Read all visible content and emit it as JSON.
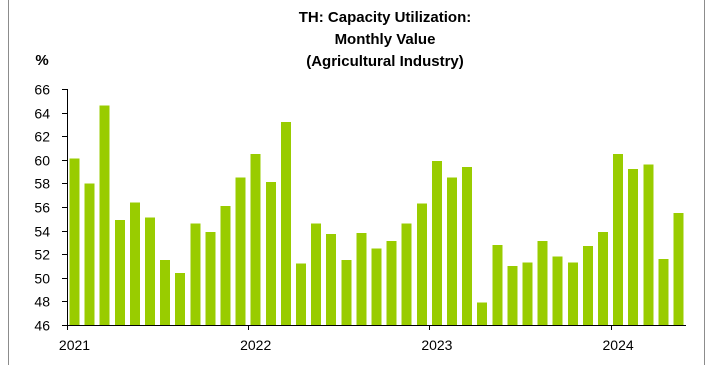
{
  "colors": {
    "bar": "#99cc00",
    "axis": "#000000"
  },
  "chart_data": {
    "type": "bar",
    "title": [
      "TH: Capacity Utilization:",
      "Monthly Value",
      "(Agricultural Industry)"
    ],
    "ylabel": "%",
    "ylim": [
      46,
      66
    ],
    "yticks": [
      46,
      48,
      50,
      52,
      54,
      56,
      58,
      60,
      62,
      64,
      66
    ],
    "xtick_labels": [
      "2021",
      "2022",
      "2023",
      "2024"
    ],
    "grid": false,
    "legend": false,
    "x": [
      "2021-01",
      "2021-02",
      "2021-03",
      "2021-04",
      "2021-05",
      "2021-06",
      "2021-07",
      "2021-08",
      "2021-09",
      "2021-10",
      "2021-11",
      "2021-12",
      "2022-01",
      "2022-02",
      "2022-03",
      "2022-04",
      "2022-05",
      "2022-06",
      "2022-07",
      "2022-08",
      "2022-09",
      "2022-10",
      "2022-11",
      "2022-12",
      "2023-01",
      "2023-02",
      "2023-03",
      "2023-04",
      "2023-05",
      "2023-06",
      "2023-07",
      "2023-08",
      "2023-09",
      "2023-10",
      "2023-11",
      "2023-12",
      "2024-01",
      "2024-02",
      "2024-03",
      "2024-04",
      "2024-05"
    ],
    "values": [
      60.1,
      58.0,
      64.6,
      54.9,
      56.4,
      55.1,
      51.5,
      50.4,
      54.6,
      53.9,
      56.1,
      58.5,
      60.5,
      58.1,
      63.2,
      51.2,
      54.6,
      53.7,
      51.5,
      53.8,
      52.5,
      53.1,
      54.6,
      56.3,
      59.9,
      58.5,
      59.4,
      47.9,
      52.8,
      51.0,
      51.3,
      53.1,
      51.8,
      51.3,
      52.7,
      53.9,
      60.5,
      59.2,
      59.6,
      51.6,
      55.5
    ]
  }
}
